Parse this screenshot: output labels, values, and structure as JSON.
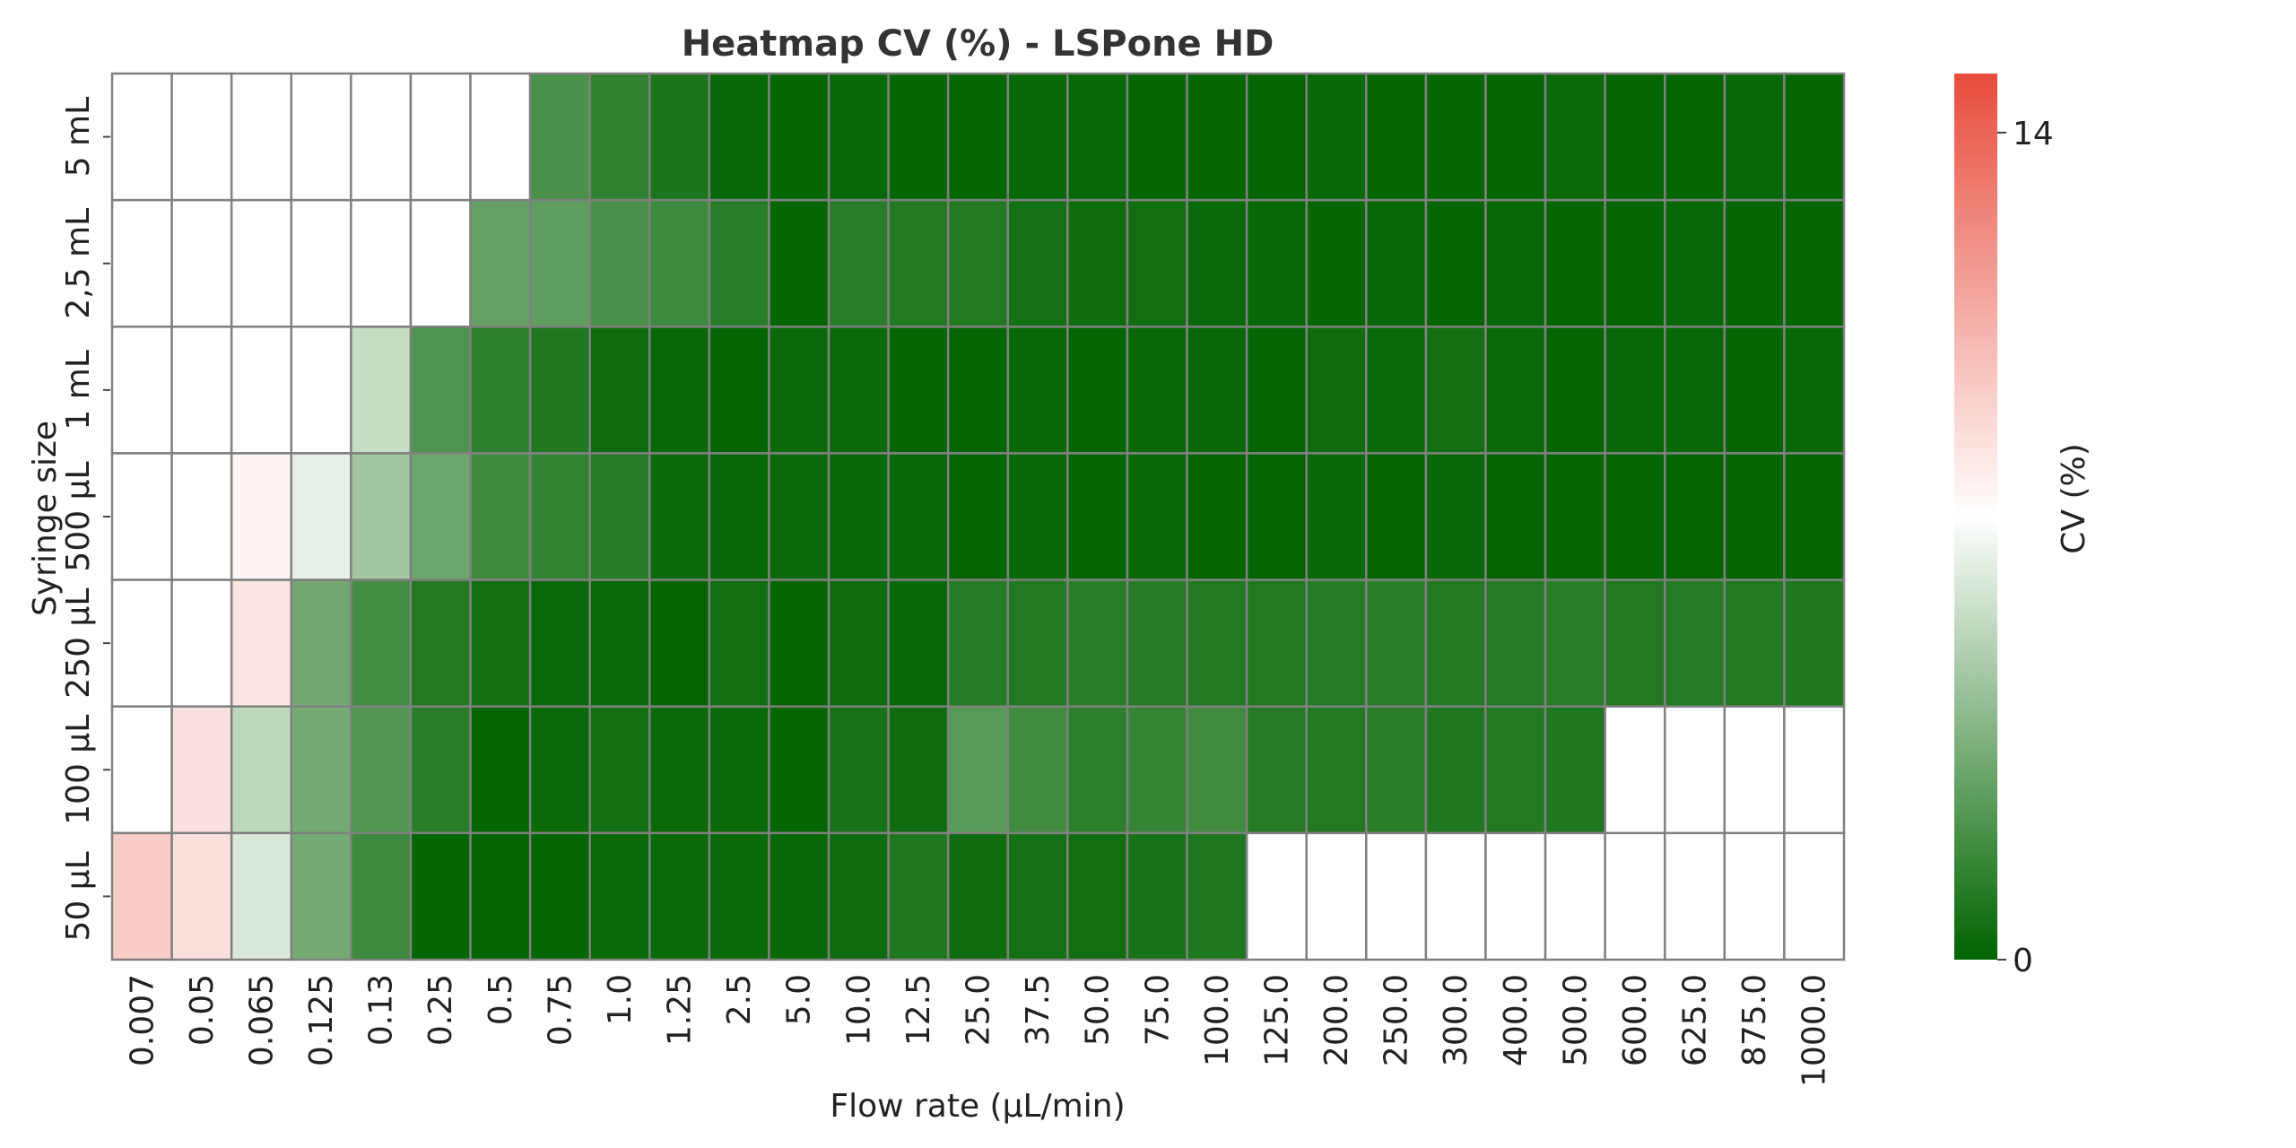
{
  "chart_data": {
    "type": "heatmap",
    "title": "Heatmap CV (%) - LSPone HD",
    "x_label": "Flow rate (µL/min)",
    "y_label": "Syringe size",
    "colorbar_label": "CV (%)",
    "x_categories": [
      "0.007",
      "0.05",
      "0.065",
      "0.125",
      "0.13",
      "0.25",
      "0.5",
      "0.75",
      "1.0",
      "1.25",
      "2.5",
      "5.0",
      "10.0",
      "12.5",
      "25.0",
      "37.5",
      "50.0",
      "75.0",
      "100.0",
      "125.0",
      "200.0",
      "250.0",
      "300.0",
      "400.0",
      "500.0",
      "600.0",
      "625.0",
      "875.0",
      "1000.0"
    ],
    "y_categories": [
      "5 mL",
      "2,5 mL",
      "1 mL",
      "500 µL",
      "250 µL",
      "100 µL",
      "50 µL"
    ],
    "values": [
      [
        null,
        null,
        null,
        null,
        null,
        null,
        null,
        2.2,
        1.4,
        0.8,
        0.2,
        0.1,
        0.2,
        0.1,
        0.1,
        0.2,
        0.2,
        0.1,
        0.1,
        0.1,
        0.2,
        0.1,
        0.1,
        0.1,
        0.3,
        0.1,
        0.1,
        0.2,
        0.1
      ],
      [
        null,
        null,
        null,
        null,
        null,
        null,
        3.0,
        2.8,
        2.2,
        1.8,
        1.2,
        0.1,
        1.2,
        1.0,
        1.0,
        0.6,
        0.4,
        0.5,
        0.3,
        0.2,
        0.1,
        0.2,
        0.1,
        0.2,
        0.1,
        0.1,
        0.2,
        0.1,
        0.1
      ],
      [
        null,
        null,
        null,
        null,
        5.8,
        2.3,
        1.3,
        0.9,
        0.4,
        0.2,
        0.1,
        0.3,
        0.3,
        0.1,
        0.1,
        0.2,
        0.1,
        0.2,
        0.2,
        0.1,
        0.4,
        0.3,
        0.5,
        0.3,
        0.1,
        0.2,
        0.2,
        0.1,
        0.2
      ],
      [
        null,
        null,
        7.9,
        6.8,
        4.8,
        3.2,
        1.8,
        1.5,
        1.1,
        0.3,
        0.2,
        0.3,
        0.2,
        0.2,
        0.1,
        0.2,
        0.1,
        0.2,
        0.1,
        0.1,
        0.2,
        0.1,
        0.2,
        0.1,
        0.1,
        0.1,
        0.1,
        0.1,
        0.1
      ],
      [
        null,
        null,
        8.6,
        3.3,
        2.0,
        1.0,
        0.5,
        0.3,
        0.3,
        0.1,
        0.5,
        0.1,
        0.4,
        0.2,
        1.1,
        1.0,
        1.2,
        1.1,
        1.0,
        1.0,
        1.1,
        1.2,
        1.0,
        1.1,
        1.2,
        1.0,
        1.1,
        1.0,
        0.9
      ],
      [
        null,
        8.7,
        5.6,
        3.4,
        2.4,
        1.2,
        0.1,
        0.3,
        0.5,
        0.3,
        0.3,
        0.1,
        0.7,
        0.4,
        2.6,
        1.9,
        1.3,
        1.6,
        1.9,
        1.1,
        1.0,
        1.2,
        0.9,
        1.0,
        0.9,
        null,
        null,
        null,
        null
      ],
      [
        9.6,
        8.8,
        6.4,
        3.4,
        1.8,
        0.1,
        0.1,
        0.1,
        0.3,
        0.3,
        0.3,
        0.2,
        0.4,
        0.9,
        0.4,
        0.6,
        0.5,
        0.7,
        0.9,
        null,
        null,
        null,
        null,
        null,
        null,
        null,
        null,
        null,
        null
      ]
    ],
    "colormap": [
      "#006400",
      "#ffffff",
      "#e74c3c"
    ],
    "clim": [
      0,
      15
    ],
    "colorbar_ticks": [
      0,
      14
    ],
    "cell_border": "#808080"
  }
}
